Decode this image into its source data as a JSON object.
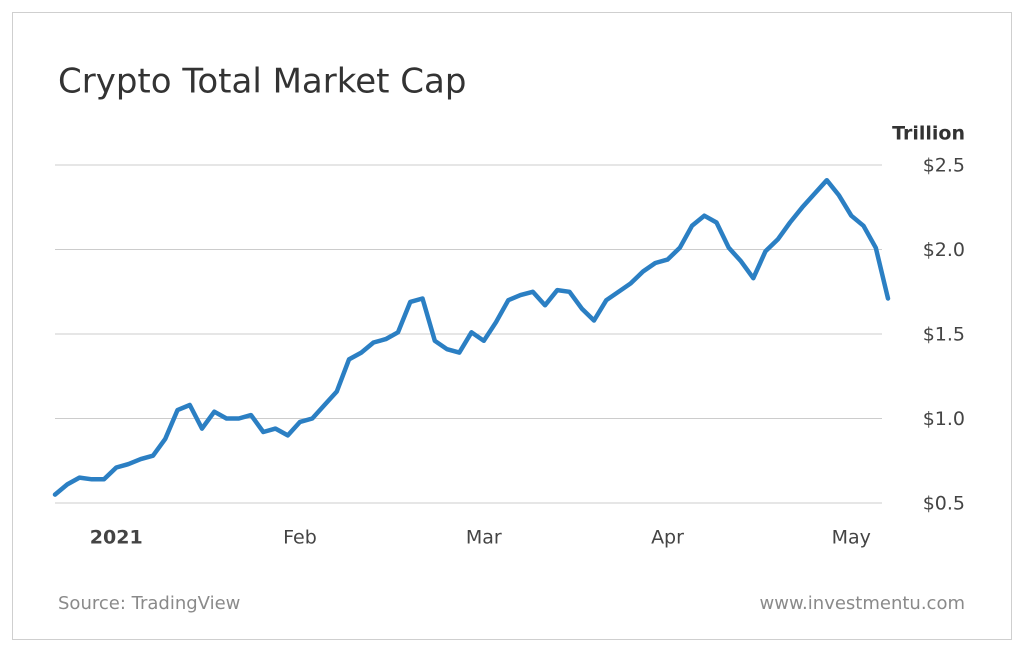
{
  "chart_data": {
    "type": "line",
    "title": "Crypto Total Market Cap",
    "y_label": "Trillion",
    "source": "Source: TradingView",
    "website": "www.investmentu.com",
    "color": "#2b7fc3",
    "categories": [
      null,
      null,
      null,
      null,
      null,
      "2021",
      null,
      null,
      null,
      null,
      null,
      null,
      null,
      null,
      null,
      null,
      null,
      null,
      null,
      null,
      "Feb",
      null,
      null,
      null,
      null,
      null,
      null,
      null,
      null,
      null,
      null,
      null,
      null,
      null,
      null,
      "Mar",
      null,
      null,
      null,
      null,
      null,
      null,
      null,
      null,
      null,
      null,
      null,
      null,
      null,
      null,
      "Apr",
      null,
      null,
      null,
      null,
      null,
      null,
      null,
      null,
      null,
      null,
      null,
      null,
      null,
      null,
      "May",
      null,
      null,
      null
    ],
    "values": [
      0.55,
      0.61,
      0.65,
      0.64,
      0.64,
      0.71,
      0.73,
      0.76,
      0.78,
      0.88,
      1.05,
      1.08,
      0.94,
      1.04,
      1.0,
      1.0,
      1.02,
      0.92,
      0.94,
      0.9,
      0.98,
      1.0,
      1.08,
      1.16,
      1.35,
      1.39,
      1.45,
      1.47,
      1.51,
      1.69,
      1.71,
      1.46,
      1.41,
      1.39,
      1.51,
      1.46,
      1.57,
      1.7,
      1.73,
      1.75,
      1.67,
      1.76,
      1.75,
      1.65,
      1.58,
      1.7,
      1.75,
      1.8,
      1.87,
      1.92,
      1.94,
      2.01,
      2.14,
      2.2,
      2.16,
      2.01,
      1.93,
      1.83,
      1.99,
      2.06,
      2.16,
      2.25,
      2.33,
      2.41,
      2.32,
      2.2,
      2.14,
      2.01,
      1.71
    ],
    "ylim": [
      0.5,
      2.5
    ],
    "yticks": [
      {
        "value": 0.5,
        "label": "$0.5"
      },
      {
        "value": 1.0,
        "label": "$1.0"
      },
      {
        "value": 1.5,
        "label": "$1.5"
      },
      {
        "value": 2.0,
        "label": "$2.0"
      },
      {
        "value": 2.5,
        "label": "$2.5"
      }
    ],
    "grid": true
  }
}
